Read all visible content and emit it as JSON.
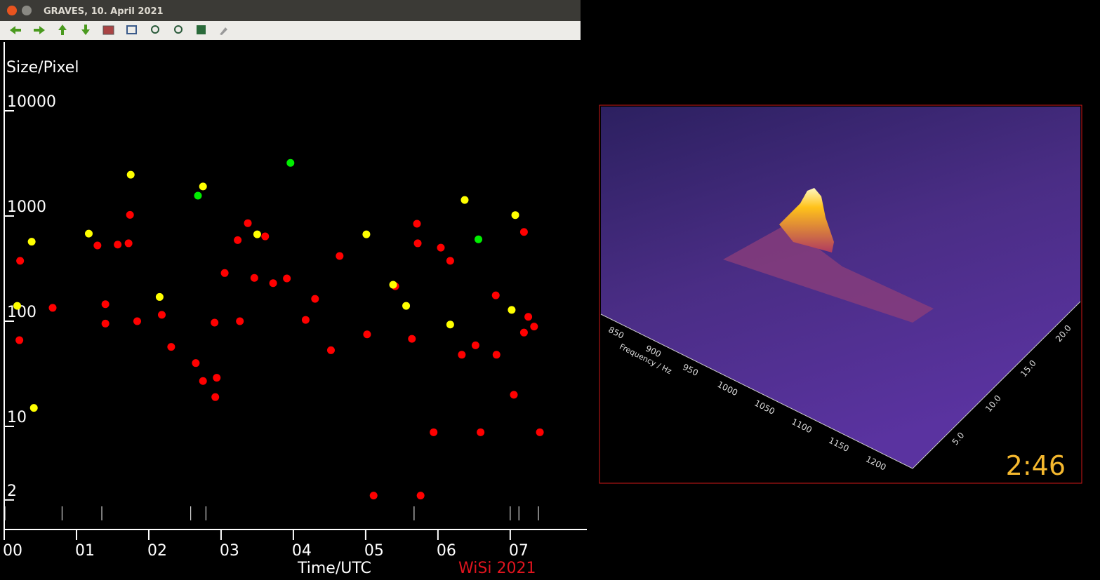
{
  "window": {
    "title": "GRAVES, 10. April 2021"
  },
  "chart_data": {
    "type": "scatter",
    "y_label": "Size/Pixel",
    "x_label": "Time/UTC",
    "credit": "WiSi 2021",
    "log_y": true,
    "xlim": [
      0,
      8.06
    ],
    "ylim": [
      1,
      45000
    ],
    "xticks": [
      {
        "value": 0,
        "label": "00"
      },
      {
        "value": 1,
        "label": "01"
      },
      {
        "value": 2,
        "label": "02"
      },
      {
        "value": 3,
        "label": "03"
      },
      {
        "value": 4,
        "label": "04"
      },
      {
        "value": 5,
        "label": "05"
      },
      {
        "value": 6,
        "label": "06"
      },
      {
        "value": 7,
        "label": "07"
      }
    ],
    "yticks": [
      2,
      10,
      100,
      1000,
      10000
    ],
    "rug_x": [
      0.01,
      0.8,
      1.35,
      2.58,
      2.79,
      5.67,
      7.0,
      7.12,
      7.39
    ],
    "series": [
      {
        "color": "#ff0000",
        "x": [
          0.21,
          0.22,
          0.67,
          1.29,
          1.4,
          1.4,
          1.57,
          1.72,
          1.74,
          1.84,
          2.18,
          2.31,
          2.65,
          2.75,
          2.91,
          2.94,
          2.92,
          3.05,
          3.23,
          3.26,
          3.37,
          3.46,
          3.61,
          3.72,
          3.91,
          4.17,
          4.3,
          4.52,
          4.64,
          5.02,
          5.11,
          5.41,
          5.64,
          5.71,
          5.72,
          5.76,
          5.94,
          6.04,
          6.17,
          6.33,
          6.52,
          6.59,
          6.8,
          6.81,
          7.05,
          7.19,
          7.19,
          7.25,
          7.33,
          7.41
        ],
        "values": [
          66,
          375,
          134,
          525,
          145,
          95,
          535,
          550,
          1025,
          100,
          115,
          57,
          40,
          27,
          97,
          29,
          19,
          287,
          590,
          100,
          855,
          258,
          640,
          230,
          255,
          103,
          163,
          53,
          417,
          75,
          2.2,
          215,
          68,
          845,
          550,
          2.2,
          8.8,
          500,
          375,
          48,
          59,
          8.8,
          176,
          48,
          20,
          705,
          78,
          110,
          89,
          8.8
        ]
      },
      {
        "color": "#ffff00",
        "x": [
          0.18,
          0.38,
          0.41,
          1.17,
          1.75,
          2.15,
          2.75,
          3.5,
          5.01,
          5.38,
          5.56,
          6.17,
          6.37,
          7.02,
          7.07
        ],
        "values": [
          140,
          570,
          15,
          680,
          2470,
          170,
          1910,
          670,
          670,
          222,
          140,
          93,
          1420,
          128,
          1020
        ]
      },
      {
        "color": "#00ee00",
        "x": [
          2.68,
          3.96,
          6.56
        ],
        "values": [
          1560,
          3200,
          600
        ]
      }
    ]
  },
  "panel": {
    "freq_ticks": [
      "850",
      "900",
      "950",
      "1000",
      "1050",
      "1100",
      "1150",
      "1200"
    ],
    "freq_label": "Frequency / Hz",
    "time_ticks": [
      "5.0",
      "10.0",
      "15.0",
      "20.0"
    ],
    "timer": "2:46"
  }
}
